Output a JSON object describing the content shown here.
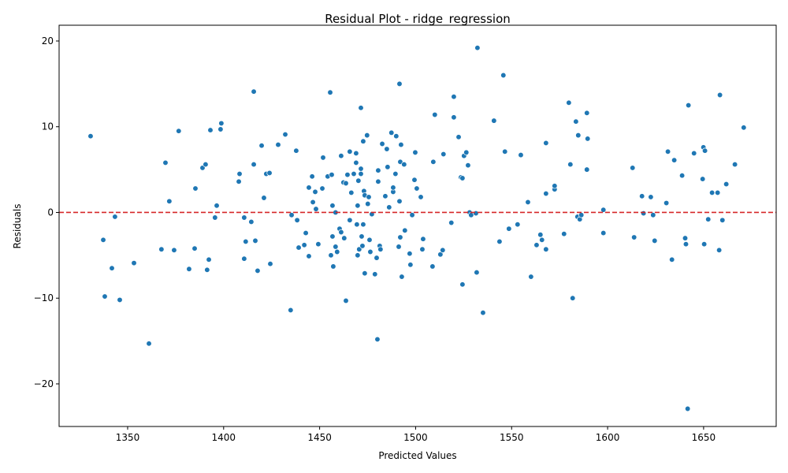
{
  "chart_data": {
    "type": "scatter",
    "title": "Residual Plot - ridge_regression",
    "x_label": "Predicted Values",
    "y_label": "Residuals",
    "color": "#1f77b4",
    "xlim": [
      1314.3,
      1687.8
    ],
    "ylim": [
      -24.97,
      21.84
    ],
    "xticks": [
      1350,
      1400,
      1450,
      1500,
      1550,
      1600,
      1650
    ],
    "yticks": [
      {
        "value": -20,
        "label": "−20"
      },
      {
        "value": -10,
        "label": "−10"
      },
      0,
      10,
      20
    ],
    "reference_line": {
      "y": 0,
      "color": "#d62728",
      "style": "dashed"
    },
    "x": [
      1330.7,
      1337.3,
      1338.1,
      1341.8,
      1343.4,
      1345.9,
      1353.3,
      1361.1,
      1367.6,
      1369.7,
      1371.7,
      1374.2,
      1376.6,
      1382,
      1384.9,
      1385.3,
      1389,
      1390.6,
      1391.4,
      1392.3,
      1393.1,
      1395.5,
      1396.4,
      1398.4,
      1398.8,
      1407.9,
      1408.3,
      1410.7,
      1410.7,
      1411.5,
      1414.4,
      1415.7,
      1415.7,
      1416.5,
      1417.7,
      1419.8,
      1421,
      1422.2,
      1423.9,
      1424.3,
      1428.4,
      1432.1,
      1434.9,
      1435.4,
      1437.8,
      1438.3,
      1439.1,
      1442,
      1442.8,
      1444.4,
      1444.4,
      1446.1,
      1446.5,
      1447.7,
      1448.1,
      1449.3,
      1451.4,
      1451.8,
      1454.2,
      1455.5,
      1455.9,
      1456.3,
      1456.7,
      1456.7,
      1457.1,
      1458.3,
      1459.1,
      1458.3,
      1460.4,
      1461.2,
      1461.2,
      1462.4,
      1462.8,
      1463.7,
      1463.7,
      1464.5,
      1465.7,
      1466.5,
      1465.7,
      1467.8,
      1469,
      1469,
      1469.4,
      1469.8,
      1469.8,
      1470.2,
      1470.6,
      1471.5,
      1471.5,
      1471.5,
      1471.9,
      1472.7,
      1472.7,
      1472.3,
      1473.1,
      1473.5,
      1473.5,
      1474.7,
      1475.1,
      1475.6,
      1476,
      1476.4,
      1477.2,
      1478.8,
      1479.7,
      1480.1,
      1480.5,
      1480.5,
      1481.3,
      1481.7,
      1482.6,
      1484.2,
      1485,
      1485.4,
      1486.2,
      1487.4,
      1488.3,
      1488.3,
      1489.5,
      1489.9,
      1491.2,
      1491.6,
      1491.6,
      1492,
      1492.4,
      1492,
      1492.8,
      1494,
      1494.4,
      1496.9,
      1497.3,
      1498.2,
      1499.4,
      1499.8,
      1500.6,
      1502.7,
      1503.9,
      1503.5,
      1508.8,
      1509.2,
      1510,
      1512.9,
      1514.1,
      1514.5,
      1518.6,
      1519.9,
      1519.9,
      1522.4,
      1523.6,
      1524.4,
      1524.4,
      1525.2,
      1526.4,
      1527.3,
      1528.1,
      1528.9,
      1531.4,
      1532.2,
      1531.8,
      1535.1,
      1540.8,
      1543.7,
      1545.7,
      1546.5,
      1548.6,
      1553.1,
      1554.8,
      1558.5,
      1560.1,
      1563,
      1565,
      1565.8,
      1567.9,
      1567.9,
      1567.9,
      1572.4,
      1572.4,
      1577.3,
      1579.8,
      1580.6,
      1581.8,
      1583.5,
      1584.3,
      1584.7,
      1585.5,
      1586.3,
      1589.2,
      1589.2,
      1589.6,
      1597.8,
      1597.8,
      1613,
      1613.8,
      1617.9,
      1618.7,
      1622.5,
      1623.7,
      1624.5,
      1630.6,
      1631.4,
      1633.5,
      1634.7,
      1638.8,
      1640.4,
      1640.8,
      1641.7,
      1642.1,
      1645,
      1649.5,
      1649.9,
      1650.7,
      1650.3,
      1652.4,
      1654.4,
      1657.3,
      1658.5,
      1658.1,
      1659.8,
      1661.8,
      1666.3,
      1670.9
    ],
    "values": [
      8.9,
      -3.2,
      -9.8,
      -6.5,
      -0.5,
      -10.2,
      -5.9,
      -15.3,
      -4.3,
      5.8,
      1.3,
      -4.4,
      9.5,
      -6.6,
      -4.2,
      2.8,
      5.2,
      5.6,
      -6.7,
      -5.5,
      9.6,
      -0.6,
      0.8,
      9.7,
      10.4,
      3.6,
      4.5,
      -0.6,
      -5.4,
      -3.4,
      -1.1,
      14.1,
      5.6,
      -3.3,
      -6.8,
      7.8,
      1.7,
      4.5,
      4.6,
      -6.0,
      7.9,
      9.1,
      -11.4,
      -0.3,
      7.2,
      -0.9,
      -4.1,
      -3.8,
      -2.4,
      -5.1,
      2.9,
      4.2,
      1.2,
      2.4,
      0.4,
      -3.7,
      2.8,
      6.4,
      4.2,
      14.0,
      -5.0,
      4.4,
      0.8,
      -2.8,
      -6.3,
      -4.0,
      -4.6,
      0,
      -1.9,
      -2.3,
      6.6,
      3.5,
      -3.0,
      -10.3,
      3.4,
      4.4,
      7.1,
      2.3,
      -0.9,
      4.5,
      6.9,
      5.8,
      -1.4,
      0.8,
      -5.0,
      3.7,
      -4.3,
      5.1,
      4.5,
      12.2,
      -2.8,
      8.3,
      -1.4,
      -3.9,
      2.5,
      2.0,
      -7.1,
      9.0,
      1.0,
      1.8,
      -3.2,
      -4.6,
      -0.2,
      -7.2,
      -5.3,
      -14.8,
      3.6,
      4.9,
      -3.9,
      -4.3,
      8.0,
      1.9,
      7.4,
      5.3,
      0.6,
      9.3,
      2.4,
      2.9,
      4.5,
      8.9,
      -4.0,
      15.0,
      1.3,
      -2.9,
      7.9,
      5.9,
      -7.5,
      5.6,
      -2.1,
      -4.8,
      -6.1,
      -0.3,
      3.8,
      7.0,
      2.8,
      1.8,
      -3.1,
      -4.3,
      -6.3,
      5.9,
      11.4,
      -4.9,
      -4.4,
      6.8,
      -1.2,
      13.5,
      11.1,
      8.8,
      4.1,
      4.0,
      -8.4,
      6.6,
      7.0,
      5.5,
      0,
      -0.3,
      -0.1,
      19.2,
      -7.0,
      -11.7,
      10.7,
      -3.4,
      16.0,
      7.1,
      -1.9,
      -1.4,
      6.7,
      1.2,
      -7.5,
      -3.8,
      -2.6,
      -3.2,
      -4.3,
      2.2,
      8.1,
      2.7,
      3.1,
      -2.5,
      12.8,
      5.6,
      -10.0,
      10.6,
      -0.5,
      9.0,
      -0.8,
      -0.3,
      11.6,
      5.0,
      8.6,
      -2.4,
      0.3,
      5.2,
      -2.9,
      1.9,
      -0.1,
      1.8,
      -0.3,
      -3.3,
      1.1,
      7.1,
      -5.5,
      6.1,
      4.3,
      -3.0,
      -3.7,
      -22.9,
      12.5,
      6.9,
      3.9,
      7.6,
      7.2,
      -3.7,
      -0.8,
      2.3,
      2.3,
      13.7,
      -4.4,
      -0.9,
      3.3,
      5.6,
      9.9
    ]
  }
}
